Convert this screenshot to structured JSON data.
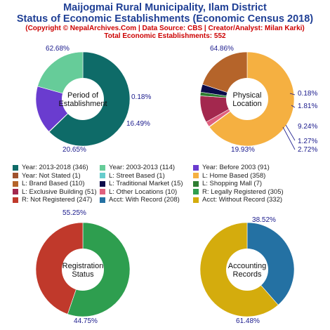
{
  "header": {
    "title_line1": "Maijogmai Rural Municipality, Ilam District",
    "title_line2": "Status of Economic Establishments (Economic Census 2018)",
    "subtitle": "(Copyright © NepalArchives.Com | Data Source: CBS | Creator/Analyst: Milan Karki)",
    "total": "Total Economic Establishments: 552"
  },
  "chart_data": [
    {
      "type": "pie",
      "center_label": [
        "Period of",
        "Establishment"
      ],
      "slices": [
        {
          "label": "Year: 2013-2018 (346)",
          "value": 346,
          "percent": "62.68%",
          "color": "#0e6b68"
        },
        {
          "label": "Year: Not Stated (1)",
          "value": 1,
          "percent": "0.18%",
          "color": "#a0522d"
        },
        {
          "label": "Year: Before 2003 (91)",
          "value": 91,
          "percent": "16.49%",
          "color": "#6a3ccf"
        },
        {
          "label": "Year: 2003-2013 (114)",
          "value": 114,
          "percent": "20.65%",
          "color": "#66cc99"
        }
      ]
    },
    {
      "type": "pie",
      "center_label": [
        "Physical",
        "Location"
      ],
      "slices": [
        {
          "label": "L: Home Based (358)",
          "value": 358,
          "percent": "64.86%",
          "color": "#f5b041"
        },
        {
          "label": "L: Street Based (1)",
          "value": 1,
          "percent": "0.18%",
          "color": "#66cccc"
        },
        {
          "label": "L: Other Locations (10)",
          "value": 10,
          "percent": "1.81%",
          "color": "#e0607e"
        },
        {
          "label": "L: Exclusive Building (51)",
          "value": 51,
          "percent": "9.24%",
          "color": "#a3284e"
        },
        {
          "label": "L: Shopping Mall (7)",
          "value": 7,
          "percent": "1.27%",
          "color": "#2e7d32"
        },
        {
          "label": "L: Traditional Market (15)",
          "value": 15,
          "percent": "2.72%",
          "color": "#0b0b4a"
        },
        {
          "label": "L: Brand Based (110)",
          "value": 110,
          "percent": "19.93%",
          "color": "#b5642a"
        }
      ]
    },
    {
      "type": "pie",
      "center_label": [
        "Registration",
        "Status"
      ],
      "slices": [
        {
          "label": "R: Legally Registered (305)",
          "value": 305,
          "percent": "55.25%",
          "color": "#2e9e4f"
        },
        {
          "label": "R: Not Registered (247)",
          "value": 247,
          "percent": "44.75%",
          "color": "#c0392b"
        }
      ]
    },
    {
      "type": "pie",
      "center_label": [
        "Accounting",
        "Records"
      ],
      "slices": [
        {
          "label": "Acct: With Record (208)",
          "value": 208,
          "percent": "38.52%",
          "color": "#2471a3"
        },
        {
          "label": "Acct: Without Record (332)",
          "value": 332,
          "percent": "61.48%",
          "color": "#d4ac0d"
        }
      ]
    }
  ],
  "legend": [
    [
      {
        "label": "Year: 2013-2018 (346)",
        "color": "#0e6b68"
      },
      {
        "label": "Year: 2003-2013 (114)",
        "color": "#66cc99"
      },
      {
        "label": "Year: Before 2003 (91)",
        "color": "#6a3ccf"
      }
    ],
    [
      {
        "label": "Year: Not Stated (1)",
        "color": "#a0522d"
      },
      {
        "label": "L: Street Based (1)",
        "color": "#66cccc"
      },
      {
        "label": "L: Home Based (358)",
        "color": "#f5b041"
      }
    ],
    [
      {
        "label": "L: Brand Based (110)",
        "color": "#b5642a"
      },
      {
        "label": "L: Traditional Market (15)",
        "color": "#0b0b4a"
      },
      {
        "label": "L: Shopping Mall (7)",
        "color": "#2e7d32"
      }
    ],
    [
      {
        "label": "L: Exclusive Building (51)",
        "color": "#a3284e"
      },
      {
        "label": "L: Other Locations (10)",
        "color": "#e0607e"
      },
      {
        "label": "R: Legally Registered (305)",
        "color": "#2e9e4f"
      }
    ],
    [
      {
        "label": "R: Not Registered (247)",
        "color": "#c0392b"
      },
      {
        "label": "Acct: With Record (208)",
        "color": "#2471a3"
      },
      {
        "label": "Acct: Without Record (332)",
        "color": "#d4ac0d"
      }
    ]
  ]
}
